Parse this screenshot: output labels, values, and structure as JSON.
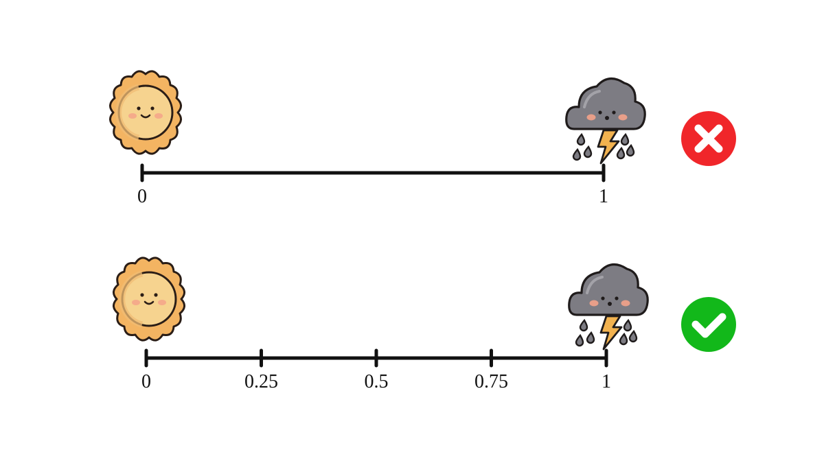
{
  "colors": {
    "axis": "#111111",
    "sun_fill": "#f6d38f",
    "sun_rays": "#f3b462",
    "cloud_fill": "#7d7c83",
    "bolt_fill": "#f2b24f",
    "cheek": "#f4a38a",
    "wrong_badge": "#f0262a",
    "right_badge": "#12b81a",
    "badge_mark": "#ffffff"
  },
  "scales": [
    {
      "id": "binary",
      "left_icon": "sun-icon",
      "right_icon": "storm-cloud-icon",
      "ticks": [
        {
          "value": 0,
          "label": "0"
        },
        {
          "value": 1,
          "label": "1"
        }
      ],
      "status_icon": "cross-icon",
      "status": "incorrect"
    },
    {
      "id": "continuous",
      "left_icon": "sun-icon",
      "right_icon": "storm-cloud-icon",
      "ticks": [
        {
          "value": 0,
          "label": "0"
        },
        {
          "value": 0.25,
          "label": "0.25"
        },
        {
          "value": 0.5,
          "label": "0.5"
        },
        {
          "value": 0.75,
          "label": "0.75"
        },
        {
          "value": 1,
          "label": "1"
        }
      ],
      "status_icon": "check-icon",
      "status": "correct"
    }
  ]
}
